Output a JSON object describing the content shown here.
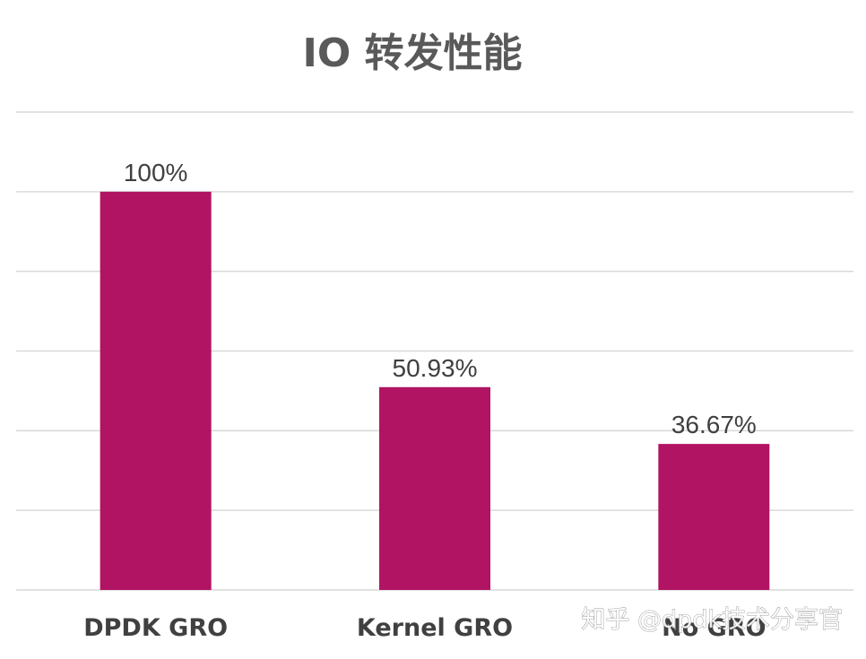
{
  "chart_data": {
    "type": "bar",
    "title": "IO 转发性能",
    "categories": [
      "DPDK GRO",
      "Kernel GRO",
      "No GRO"
    ],
    "series": [
      {
        "values": [
          100,
          50.93,
          36.67
        ],
        "data_labels": [
          "100%",
          "50.93%",
          "36.67%"
        ]
      }
    ],
    "xlabel": "",
    "ylabel": "",
    "ylim": [
      0,
      120
    ],
    "grid": true,
    "legend": "none",
    "bar_color": "#b01463"
  },
  "watermark": "知乎 @dpdk技术分享官"
}
